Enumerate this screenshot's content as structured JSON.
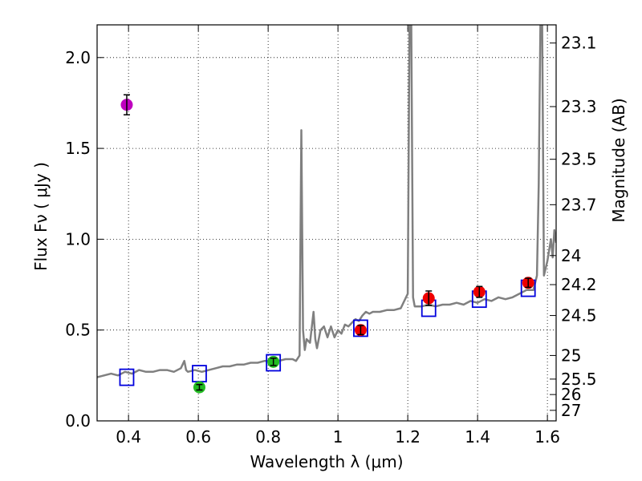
{
  "chart_data": {
    "type": "scatter",
    "xlabel": "Wavelength  λ (μm)",
    "ylabel": "Flux  Fν  ( μJy )",
    "y2label": "Magnitude (AB)",
    "xlim": [
      0.31,
      1.625
    ],
    "ylim": [
      0.0,
      2.18
    ],
    "grid": true,
    "x_ticks": [
      {
        "value": 0.4,
        "label": "0.4"
      },
      {
        "value": 0.6,
        "label": "0.6"
      },
      {
        "value": 0.8,
        "label": "0.8"
      },
      {
        "value": 1.0,
        "label": "1"
      },
      {
        "value": 1.2,
        "label": "1.2"
      },
      {
        "value": 1.4,
        "label": "1.4"
      },
      {
        "value": 1.6,
        "label": "1.6"
      }
    ],
    "y_ticks": [
      {
        "value": 0.0,
        "label": "0.0"
      },
      {
        "value": 0.5,
        "label": "0.5"
      },
      {
        "value": 1.0,
        "label": "1.0"
      },
      {
        "value": 1.5,
        "label": "1.5"
      },
      {
        "value": 2.0,
        "label": "2.0"
      }
    ],
    "mag_ticks": [
      {
        "flux": 2.08,
        "label": "23.1"
      },
      {
        "flux": 1.73,
        "label": "23.3"
      },
      {
        "flux": 1.44,
        "label": "23.5"
      },
      {
        "flux": 1.19,
        "label": "23.7"
      },
      {
        "flux": 0.91,
        "label": "24"
      },
      {
        "flux": 0.75,
        "label": "24.2"
      },
      {
        "flux": 0.58,
        "label": "24.5"
      },
      {
        "flux": 0.36,
        "label": "25"
      },
      {
        "flux": 0.23,
        "label": "25.5"
      },
      {
        "flux": 0.145,
        "label": "26"
      },
      {
        "flux": 0.058,
        "label": "27"
      }
    ],
    "observed_points": [
      {
        "x": 0.395,
        "y": 1.74,
        "err": 0.055,
        "color": "#bf00bf"
      },
      {
        "x": 0.603,
        "y": 0.185,
        "err": 0.015,
        "color": "#22bb22"
      },
      {
        "x": 0.815,
        "y": 0.325,
        "err": 0.02,
        "color": "#22bb22"
      },
      {
        "x": 1.065,
        "y": 0.5,
        "err": 0.025,
        "color": "#ee0000"
      },
      {
        "x": 1.26,
        "y": 0.675,
        "err": 0.04,
        "color": "#ee0000"
      },
      {
        "x": 1.405,
        "y": 0.71,
        "err": 0.03,
        "color": "#ee0000"
      },
      {
        "x": 1.545,
        "y": 0.76,
        "err": 0.025,
        "color": "#ee0000"
      }
    ],
    "model_points": [
      {
        "x": 0.395,
        "y": 0.24
      },
      {
        "x": 0.603,
        "y": 0.26
      },
      {
        "x": 0.815,
        "y": 0.32
      },
      {
        "x": 1.065,
        "y": 0.51
      },
      {
        "x": 1.26,
        "y": 0.62
      },
      {
        "x": 1.405,
        "y": 0.67
      },
      {
        "x": 1.545,
        "y": 0.73
      }
    ],
    "model_spectrum": {
      "color": "#808080",
      "x": [
        0.31,
        0.33,
        0.35,
        0.37,
        0.39,
        0.41,
        0.43,
        0.45,
        0.47,
        0.49,
        0.51,
        0.53,
        0.55,
        0.56,
        0.565,
        0.57,
        0.59,
        0.61,
        0.63,
        0.65,
        0.67,
        0.69,
        0.71,
        0.73,
        0.75,
        0.77,
        0.79,
        0.81,
        0.83,
        0.85,
        0.87,
        0.88,
        0.89,
        0.895,
        0.9,
        0.905,
        0.91,
        0.92,
        0.93,
        0.935,
        0.94,
        0.95,
        0.96,
        0.97,
        0.98,
        0.99,
        1.0,
        1.01,
        1.02,
        1.03,
        1.04,
        1.05,
        1.06,
        1.07,
        1.08,
        1.09,
        1.1,
        1.12,
        1.14,
        1.16,
        1.18,
        1.2,
        1.205,
        1.21,
        1.215,
        1.22,
        1.24,
        1.26,
        1.28,
        1.3,
        1.32,
        1.34,
        1.36,
        1.38,
        1.4,
        1.42,
        1.44,
        1.46,
        1.48,
        1.5,
        1.52,
        1.54,
        1.56,
        1.57,
        1.575,
        1.58,
        1.585,
        1.59,
        1.6,
        1.61,
        1.615,
        1.62,
        1.625
      ],
      "y": [
        0.24,
        0.25,
        0.26,
        0.25,
        0.27,
        0.26,
        0.28,
        0.27,
        0.27,
        0.28,
        0.28,
        0.27,
        0.29,
        0.33,
        0.28,
        0.27,
        0.28,
        0.27,
        0.28,
        0.29,
        0.3,
        0.3,
        0.31,
        0.31,
        0.32,
        0.32,
        0.33,
        0.33,
        0.33,
        0.34,
        0.34,
        0.33,
        0.36,
        1.6,
        0.5,
        0.39,
        0.45,
        0.43,
        0.6,
        0.45,
        0.4,
        0.5,
        0.52,
        0.46,
        0.52,
        0.46,
        0.5,
        0.48,
        0.53,
        0.52,
        0.54,
        0.56,
        0.55,
        0.58,
        0.6,
        0.59,
        0.6,
        0.6,
        0.61,
        0.61,
        0.62,
        0.7,
        2.18,
        2.18,
        0.68,
        0.63,
        0.63,
        0.64,
        0.63,
        0.64,
        0.64,
        0.65,
        0.64,
        0.66,
        0.65,
        0.67,
        0.66,
        0.68,
        0.67,
        0.68,
        0.7,
        0.72,
        0.72,
        0.8,
        1.3,
        2.18,
        2.18,
        0.8,
        0.88,
        1.0,
        0.9,
        1.05,
        0.98
      ]
    }
  }
}
